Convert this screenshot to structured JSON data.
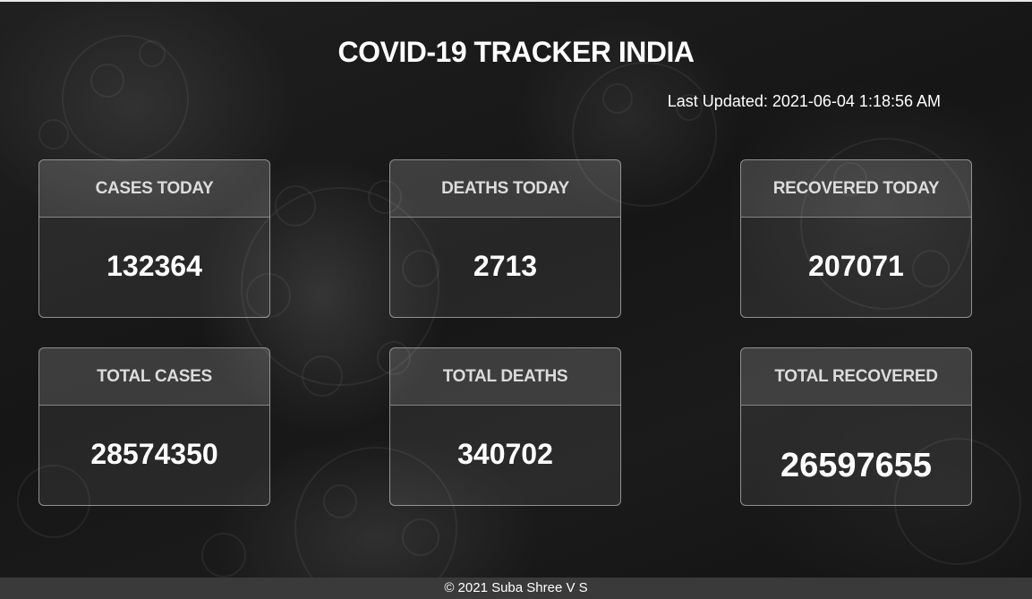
{
  "header": {
    "title": "COVID-19 TRACKER INDIA",
    "last_updated": "Last Updated: 2021-06-04 1:18:56 AM"
  },
  "cards": [
    {
      "label": "CASES TODAY",
      "value": "132364"
    },
    {
      "label": "DEATHS TODAY",
      "value": "2713"
    },
    {
      "label": "RECOVERED TODAY",
      "value": "207071"
    },
    {
      "label": "TOTAL CASES",
      "value": "28574350"
    },
    {
      "label": "TOTAL DEATHS",
      "value": "340702"
    },
    {
      "label": "TOTAL RECOVERED",
      "value": "26597655"
    }
  ],
  "footer": {
    "copyright": "© 2021 Suba Shree V S"
  },
  "colors": {
    "background": "#141414",
    "text": "#ffffff",
    "footer_bg": "#3a3a3a"
  }
}
